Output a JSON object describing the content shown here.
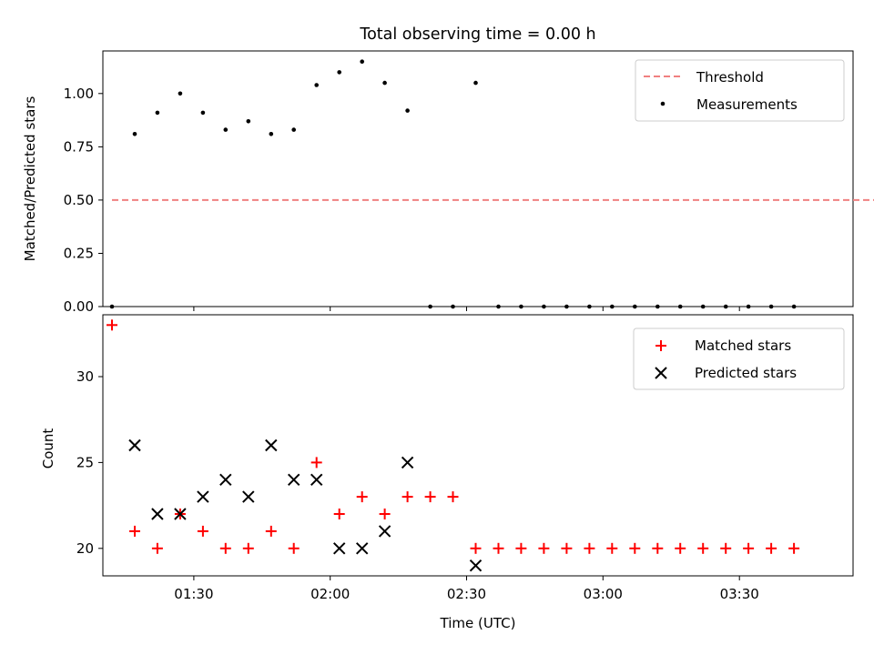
{
  "figure": {
    "title": "Total observing time = 0.00 h"
  },
  "chart_data": [
    {
      "type": "scatter",
      "title": "Total observing time = 0.00 h",
      "xlabel": "",
      "ylabel": "Matched/Predicted stars",
      "ylim": [
        0,
        1.2
      ],
      "yticks": [
        "0.00",
        "0.25",
        "0.50",
        "0.75",
        "1.00"
      ],
      "xlim": [
        "01:10",
        "03:55"
      ],
      "xticks_shown": false,
      "legend": {
        "placement": "top-right",
        "entries": [
          "Threshold",
          "Measurements"
        ]
      },
      "series": [
        {
          "name": "Threshold",
          "style": "dashed-line",
          "color": "#f08080",
          "x": [
            "01:12",
            "04:02"
          ],
          "values": [
            0.5,
            0.5
          ]
        },
        {
          "name": "Measurements",
          "style": "dot",
          "color": "#000000",
          "x": [
            "01:12",
            "01:17",
            "01:22",
            "01:27",
            "01:32",
            "01:37",
            "01:42",
            "01:47",
            "01:52",
            "01:57",
            "02:02",
            "02:07",
            "02:12",
            "02:17",
            "02:22",
            "02:27",
            "02:32",
            "02:37",
            "02:42",
            "02:47",
            "02:52",
            "02:57",
            "03:02",
            "03:07",
            "03:12",
            "03:17",
            "03:22",
            "03:27",
            "03:32",
            "03:37",
            "03:42"
          ],
          "values": [
            0.0,
            0.81,
            0.91,
            1.0,
            0.91,
            0.83,
            0.87,
            0.81,
            0.83,
            1.04,
            1.1,
            1.15,
            1.05,
            0.92,
            0.0,
            0.0,
            1.05,
            0.0,
            0.0,
            0.0,
            0.0,
            0.0,
            0.0,
            0.0,
            0.0,
            0.0,
            0.0,
            0.0,
            0.0,
            0.0,
            0.0
          ]
        }
      ]
    },
    {
      "type": "scatter",
      "title": "",
      "xlabel": "Time (UTC)",
      "ylabel": "Count",
      "ylim": [
        18.4,
        33.6
      ],
      "yticks": [
        "20",
        "25",
        "30"
      ],
      "xlim": [
        "01:10",
        "03:55"
      ],
      "xticks": [
        "01:30",
        "02:00",
        "02:30",
        "03:00",
        "03:30"
      ],
      "legend": {
        "placement": "top-right",
        "entries": [
          "Matched stars",
          "Predicted stars"
        ]
      },
      "series": [
        {
          "name": "Matched stars",
          "style": "plus",
          "color": "#ff0000",
          "x": [
            "01:12",
            "01:17",
            "01:22",
            "01:27",
            "01:32",
            "01:37",
            "01:42",
            "01:47",
            "01:52",
            "01:57",
            "02:02",
            "02:07",
            "02:12",
            "02:17",
            "02:22",
            "02:27",
            "02:32",
            "02:37",
            "02:42",
            "02:47",
            "02:52",
            "02:57",
            "03:02",
            "03:07",
            "03:12",
            "03:17",
            "03:22",
            "03:27",
            "03:32",
            "03:37",
            "03:42"
          ],
          "values": [
            33,
            21,
            20,
            22,
            21,
            20,
            20,
            21,
            20,
            25,
            22,
            23,
            22,
            23,
            23,
            23,
            20,
            20,
            20,
            20,
            20,
            20,
            20,
            20,
            20,
            20,
            20,
            20,
            20,
            20,
            20
          ]
        },
        {
          "name": "Predicted stars",
          "style": "x",
          "color": "#000000",
          "x": [
            "01:17",
            "01:22",
            "01:27",
            "01:32",
            "01:37",
            "01:42",
            "01:47",
            "01:52",
            "01:57",
            "02:02",
            "02:07",
            "02:12",
            "02:17",
            "02:32"
          ],
          "values": [
            26,
            22,
            22,
            23,
            24,
            23,
            26,
            24,
            24,
            20,
            20,
            21,
            25,
            19
          ]
        }
      ]
    }
  ]
}
